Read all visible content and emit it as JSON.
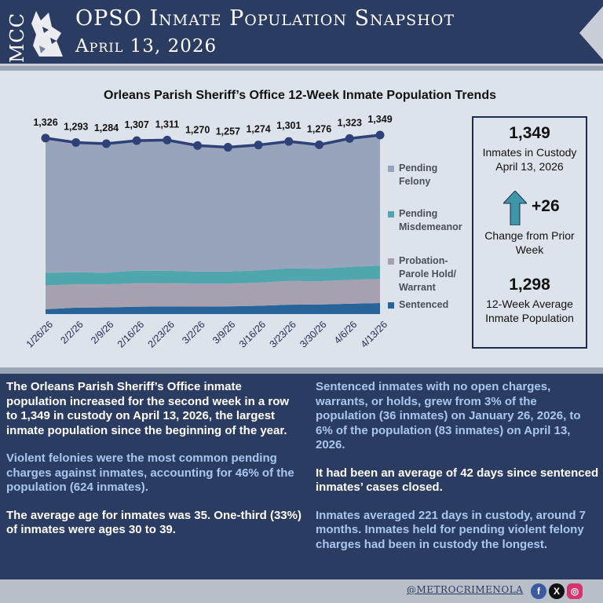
{
  "header": {
    "logo_text": "MCC",
    "title": "OPSO Inmate Population Snapshot",
    "subtitle": "April 13, 2026"
  },
  "colors": {
    "navy": "#2b3c63",
    "pending_felony": "#97a4bc",
    "pending_misdemeanor": "#4fa6ad",
    "probation_parole": "#a6a0b0",
    "sentenced": "#27649a",
    "line": "#2f4278",
    "highlight_text": "#a9c6ee"
  },
  "chart_data": {
    "type": "area",
    "title": "Orleans Parish Sheriff’s Office 12-Week Inmate Population Trends",
    "categories": [
      "1/26/26",
      "2/2/26",
      "2/9/26",
      "2/16/26",
      "2/23/26",
      "3/2/26",
      "3/9/26",
      "3/16/26",
      "3/23/26",
      "3/30/26",
      "4/6/26",
      "4/13/26"
    ],
    "total": [
      1326,
      1293,
      1284,
      1307,
      1311,
      1270,
      1257,
      1274,
      1301,
      1276,
      1323,
      1349
    ],
    "total_labels": [
      "1,326",
      "1,293",
      "1,284",
      "1,307",
      "1,311",
      "1,270",
      "1,257",
      "1,274",
      "1,301",
      "1,276",
      "1,323",
      "1,349"
    ],
    "stacked": true,
    "series": [
      {
        "name": "Sentenced",
        "values": [
          36,
          48,
          50,
          55,
          58,
          56,
          58,
          62,
          70,
          72,
          78,
          83
        ]
      },
      {
        "name": "Probation-Parole Hold/ Warrant",
        "values": [
          180,
          176,
          174,
          178,
          176,
          174,
          172,
          175,
          180,
          176,
          180,
          182
        ]
      },
      {
        "name": "Pending Misdemeanor",
        "values": [
          95,
          90,
          88,
          95,
          92,
          90,
          90,
          92,
          95,
          94,
          98,
          100
        ]
      },
      {
        "name": "Pending Felony",
        "values": [
          1015,
          979,
          972,
          979,
          985,
          950,
          937,
          945,
          956,
          934,
          967,
          984
        ]
      }
    ],
    "legend_order": [
      "Pending Felony",
      "Pending Misdemeanor",
      "Probation-Parole Hold/ Warrant",
      "Sentenced"
    ],
    "ylim": [
      0,
      1349
    ],
    "grid": false,
    "legend_position": "right"
  },
  "stats": {
    "custody_count": "1,349",
    "custody_label_line1": "Inmates in Custody",
    "custody_label_line2": "April 13, 2026",
    "change": "+26",
    "change_label_line1": "Change from Prior",
    "change_label_line2": "Week",
    "average": "1,298",
    "average_label_line1": "12-Week Average",
    "average_label_line2": "Inmate Population"
  },
  "text": {
    "left": [
      "The Orleans Parish Sheriff’s Office inmate population increased for the second week in a row to 1,349 in custody on April 13, 2026, the largest inmate population since the beginning of the year.",
      "Violent felonies were the most common pending charges against inmates, accounting for 46% of the population (624 inmates).",
      "The average age for inmates was 35. One-third (33%) of inmates were ages 30 to 39."
    ],
    "right": [
      "Sentenced inmates with no open charges, warrants, or holds, grew from 3% of the population (36 inmates) on January 26, 2026, to 6% of the population (83 inmates) on April 13, 2026.",
      "It had been an average of 42 days since sentenced inmates’ cases closed.",
      "Inmates averaged 221 days in custody, around 7 months. Inmates held for pending violent felony charges had been in custody the longest."
    ]
  },
  "footer": {
    "handle": "@METROCRIMENOLA",
    "social_icons": [
      "facebook-icon",
      "x-icon",
      "instagram-icon"
    ]
  }
}
